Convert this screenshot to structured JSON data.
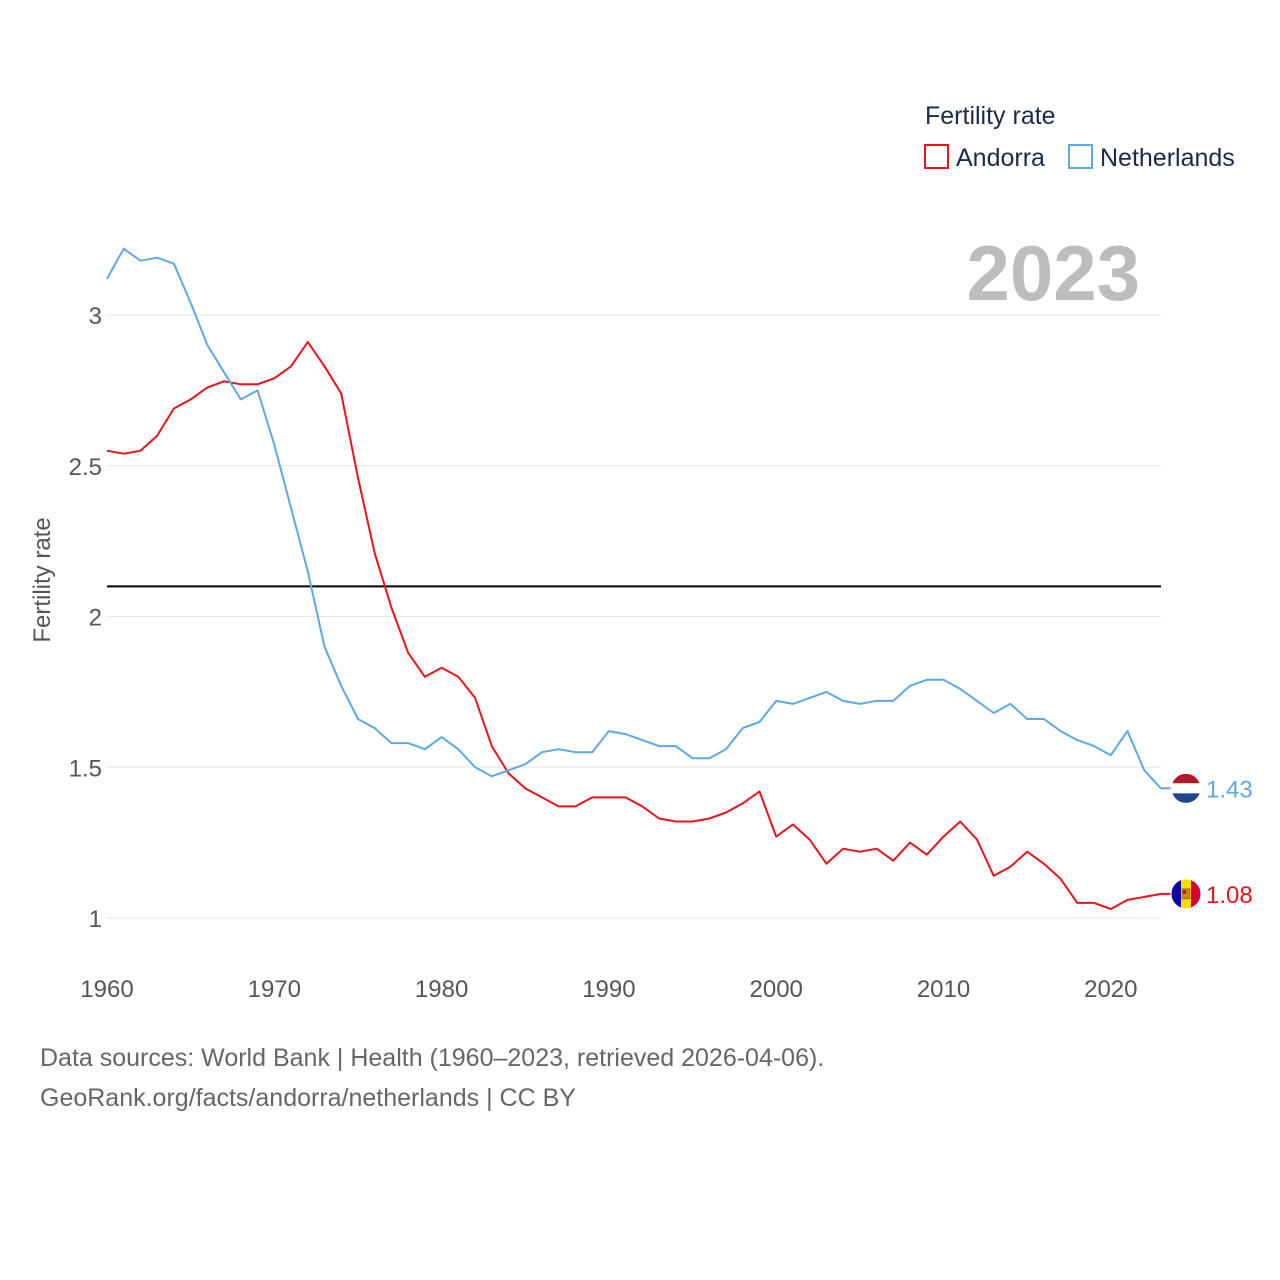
{
  "chart_data": {
    "type": "line",
    "title": "Fertility rate",
    "ylabel": "Fertility rate",
    "xlabel": "",
    "xlim": [
      1960,
      2023
    ],
    "ylim": [
      0.85,
      3.3
    ],
    "x_ticks": [
      1960,
      1970,
      1980,
      1990,
      2000,
      2010,
      2020
    ],
    "y_ticks": [
      {
        "value": 1,
        "label": "1"
      },
      {
        "value": 1.5,
        "label": "1.5"
      },
      {
        "value": 2,
        "label": "2"
      },
      {
        "value": 2.5,
        "label": "2.5"
      },
      {
        "value": 3,
        "label": "3"
      }
    ],
    "reference_line": {
      "value": 2.1,
      "color": "#000000"
    },
    "year_display": "2023",
    "legend_title": "Fertility rate",
    "legend_position": "top-right",
    "x": [
      1960,
      1961,
      1962,
      1963,
      1964,
      1965,
      1966,
      1967,
      1968,
      1969,
      1970,
      1971,
      1972,
      1973,
      1974,
      1975,
      1976,
      1977,
      1978,
      1979,
      1980,
      1981,
      1982,
      1983,
      1984,
      1985,
      1986,
      1987,
      1988,
      1989,
      1990,
      1991,
      1992,
      1993,
      1994,
      1995,
      1996,
      1997,
      1998,
      1999,
      2000,
      2001,
      2002,
      2003,
      2004,
      2005,
      2006,
      2007,
      2008,
      2009,
      2010,
      2011,
      2012,
      2013,
      2014,
      2015,
      2016,
      2017,
      2018,
      2019,
      2020,
      2021,
      2022,
      2023
    ],
    "series": [
      {
        "name": "Andorra",
        "color": "#e8141c",
        "end_label": "1.08",
        "flag": "andorra-flag",
        "values": [
          2.55,
          2.54,
          2.55,
          2.6,
          2.69,
          2.72,
          2.76,
          2.78,
          2.77,
          2.77,
          2.79,
          2.83,
          2.91,
          2.83,
          2.74,
          2.46,
          2.21,
          2.03,
          1.88,
          1.8,
          1.83,
          1.8,
          1.73,
          1.57,
          1.48,
          1.43,
          1.4,
          1.37,
          1.37,
          1.4,
          1.4,
          1.4,
          1.37,
          1.33,
          1.32,
          1.32,
          1.33,
          1.35,
          1.38,
          1.42,
          1.27,
          1.31,
          1.26,
          1.18,
          1.23,
          1.22,
          1.23,
          1.19,
          1.25,
          1.21,
          1.27,
          1.32,
          1.26,
          1.14,
          1.17,
          1.22,
          1.18,
          1.13,
          1.05,
          1.05,
          1.03,
          1.06,
          1.07,
          1.08
        ]
      },
      {
        "name": "Netherlands",
        "color": "#5ea8e6",
        "end_label": "1.43",
        "flag": "netherlands-flag",
        "values": [
          3.12,
          3.22,
          3.18,
          3.19,
          3.17,
          3.04,
          2.9,
          2.81,
          2.72,
          2.75,
          2.57,
          2.36,
          2.15,
          1.9,
          1.77,
          1.66,
          1.63,
          1.58,
          1.58,
          1.56,
          1.6,
          1.56,
          1.5,
          1.47,
          1.49,
          1.51,
          1.55,
          1.56,
          1.55,
          1.55,
          1.62,
          1.61,
          1.59,
          1.57,
          1.57,
          1.53,
          1.53,
          1.56,
          1.63,
          1.65,
          1.72,
          1.71,
          1.73,
          1.75,
          1.72,
          1.71,
          1.72,
          1.72,
          1.77,
          1.79,
          1.79,
          1.76,
          1.72,
          1.68,
          1.71,
          1.66,
          1.66,
          1.62,
          1.59,
          1.57,
          1.54,
          1.62,
          1.49,
          1.43
        ]
      }
    ]
  },
  "footer": {
    "source_line": "Data sources: World Bank | Health (1960–2023, retrieved 2026-04-06).",
    "url_line": "GeoRank.org/facts/andorra/netherlands | CC BY"
  }
}
